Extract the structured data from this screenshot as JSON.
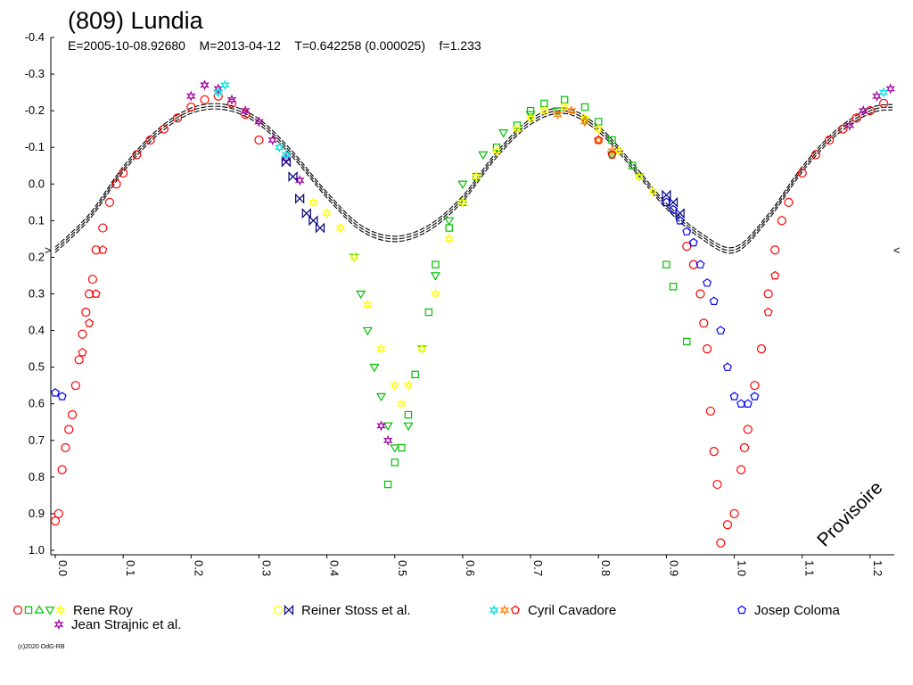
{
  "chart_data": {
    "type": "scatter",
    "title": "(809) Lundia",
    "subtitle": "E=2005-10-08.92680    M=2013-04-12    T=0.642258 (0.000025)    f=1.233",
    "stamp": "Provisoire",
    "copyright": "(c)2020 OdG-RB",
    "xlim": [
      0.0,
      1.233
    ],
    "ylim": [
      -0.4,
      1.0
    ],
    "y_inverted": true,
    "grid": false,
    "x_ticks": [
      "0.0",
      "0.1",
      "0.2",
      "0.3",
      "0.4",
      "0.5",
      "0.6",
      "0.7",
      "0.8",
      "0.9",
      "1.0",
      "1.1",
      "1.2"
    ],
    "y_ticks": [
      "-0.4",
      "-0.3",
      "-0.2",
      "-0.1",
      "0.0",
      "0.1",
      "0.2",
      "0.3",
      "0.4",
      "0.5",
      "0.6",
      "0.7",
      "0.8",
      "0.9",
      "1.0"
    ],
    "side_markers": [
      ">",
      "<"
    ],
    "model_curve": {
      "description": "fitted lightcurve",
      "points": [
        [
          0.0,
          0.18
        ],
        [
          0.05,
          0.09
        ],
        [
          0.1,
          -0.04
        ],
        [
          0.15,
          -0.14
        ],
        [
          0.2,
          -0.2
        ],
        [
          0.25,
          -0.21
        ],
        [
          0.3,
          -0.17
        ],
        [
          0.35,
          -0.08
        ],
        [
          0.4,
          0.03
        ],
        [
          0.45,
          0.12
        ],
        [
          0.5,
          0.15
        ],
        [
          0.55,
          0.12
        ],
        [
          0.6,
          0.04
        ],
        [
          0.65,
          -0.08
        ],
        [
          0.7,
          -0.17
        ],
        [
          0.75,
          -0.2
        ],
        [
          0.8,
          -0.15
        ],
        [
          0.85,
          -0.05
        ],
        [
          0.9,
          0.06
        ],
        [
          0.95,
          0.14
        ],
        [
          1.0,
          0.18
        ],
        [
          1.05,
          0.09
        ],
        [
          1.1,
          -0.04
        ],
        [
          1.15,
          -0.14
        ],
        [
          1.2,
          -0.2
        ],
        [
          1.233,
          -0.21
        ]
      ]
    },
    "series": [
      {
        "name": "Rene Roy",
        "color": "#ff0000",
        "marker": "circle",
        "points": [
          [
            0.0,
            0.92
          ],
          [
            0.005,
            0.9
          ],
          [
            0.01,
            0.78
          ],
          [
            0.015,
            0.72
          ],
          [
            0.02,
            0.67
          ],
          [
            0.025,
            0.63
          ],
          [
            0.03,
            0.55
          ],
          [
            0.035,
            0.48
          ],
          [
            0.04,
            0.41
          ],
          [
            0.045,
            0.35
          ],
          [
            0.05,
            0.3
          ],
          [
            0.055,
            0.26
          ],
          [
            0.06,
            0.18
          ],
          [
            0.07,
            0.12
          ],
          [
            0.08,
            0.05
          ],
          [
            0.09,
            0.0
          ],
          [
            0.1,
            -0.03
          ],
          [
            0.12,
            -0.08
          ],
          [
            0.14,
            -0.12
          ],
          [
            0.16,
            -0.15
          ],
          [
            0.18,
            -0.18
          ],
          [
            0.2,
            -0.21
          ],
          [
            0.22,
            -0.23
          ],
          [
            0.24,
            -0.24
          ],
          [
            0.26,
            -0.22
          ],
          [
            0.28,
            -0.19
          ],
          [
            0.3,
            -0.12
          ],
          [
            0.93,
            0.17
          ],
          [
            0.94,
            0.22
          ],
          [
            0.95,
            0.3
          ],
          [
            0.955,
            0.38
          ],
          [
            0.96,
            0.45
          ],
          [
            0.965,
            0.62
          ],
          [
            0.97,
            0.73
          ],
          [
            0.975,
            0.82
          ],
          [
            0.98,
            0.98
          ],
          [
            0.99,
            0.93
          ],
          [
            1.0,
            0.9
          ],
          [
            1.01,
            0.78
          ],
          [
            1.015,
            0.72
          ],
          [
            1.02,
            0.67
          ],
          [
            1.03,
            0.55
          ],
          [
            1.04,
            0.45
          ],
          [
            1.05,
            0.3
          ],
          [
            1.06,
            0.18
          ],
          [
            1.07,
            0.1
          ],
          [
            1.08,
            0.05
          ],
          [
            1.1,
            -0.03
          ],
          [
            1.12,
            -0.08
          ],
          [
            1.14,
            -0.12
          ],
          [
            1.16,
            -0.15
          ],
          [
            1.18,
            -0.18
          ],
          [
            1.2,
            -0.2
          ],
          [
            1.22,
            -0.22
          ]
        ]
      },
      {
        "name": "Rene Roy",
        "color": "#00c000",
        "marker": "square",
        "points": [
          [
            0.49,
            0.82
          ],
          [
            0.5,
            0.76
          ],
          [
            0.51,
            0.72
          ],
          [
            0.52,
            0.63
          ],
          [
            0.53,
            0.52
          ],
          [
            0.55,
            0.35
          ],
          [
            0.56,
            0.22
          ],
          [
            0.58,
            0.12
          ],
          [
            0.6,
            0.05
          ],
          [
            0.62,
            -0.02
          ],
          [
            0.65,
            -0.1
          ],
          [
            0.68,
            -0.16
          ],
          [
            0.7,
            -0.2
          ],
          [
            0.72,
            -0.22
          ],
          [
            0.75,
            -0.23
          ],
          [
            0.78,
            -0.21
          ],
          [
            0.8,
            -0.17
          ],
          [
            0.82,
            -0.12
          ],
          [
            0.85,
            -0.05
          ],
          [
            0.9,
            0.22
          ],
          [
            0.91,
            0.28
          ],
          [
            0.93,
            0.43
          ]
        ]
      },
      {
        "name": "Rene Roy",
        "color": "#00c000",
        "marker": "triangle-down",
        "points": [
          [
            0.44,
            0.2
          ],
          [
            0.45,
            0.3
          ],
          [
            0.46,
            0.4
          ],
          [
            0.47,
            0.5
          ],
          [
            0.48,
            0.58
          ],
          [
            0.49,
            0.66
          ],
          [
            0.5,
            0.72
          ],
          [
            0.52,
            0.66
          ],
          [
            0.54,
            0.45
          ],
          [
            0.56,
            0.25
          ],
          [
            0.58,
            0.1
          ],
          [
            0.6,
            0.0
          ],
          [
            0.63,
            -0.08
          ],
          [
            0.66,
            -0.14
          ],
          [
            0.7,
            -0.19
          ],
          [
            0.74,
            -0.2
          ],
          [
            0.78,
            -0.17
          ],
          [
            0.82,
            -0.08
          ],
          [
            0.86,
            -0.02
          ]
        ]
      },
      {
        "name": "Rene Roy",
        "color": "#ffff00",
        "marker": "star",
        "points": [
          [
            0.38,
            0.05
          ],
          [
            0.4,
            0.08
          ],
          [
            0.42,
            0.12
          ],
          [
            0.44,
            0.2
          ],
          [
            0.46,
            0.33
          ],
          [
            0.48,
            0.45
          ],
          [
            0.5,
            0.55
          ],
          [
            0.51,
            0.6
          ],
          [
            0.52,
            0.55
          ],
          [
            0.54,
            0.45
          ],
          [
            0.56,
            0.3
          ],
          [
            0.58,
            0.15
          ],
          [
            0.6,
            0.05
          ],
          [
            0.62,
            -0.02
          ],
          [
            0.65,
            -0.09
          ],
          [
            0.68,
            -0.15
          ],
          [
            0.7,
            -0.18
          ],
          [
            0.72,
            -0.2
          ],
          [
            0.75,
            -0.21
          ],
          [
            0.78,
            -0.18
          ],
          [
            0.8,
            -0.15
          ],
          [
            0.83,
            -0.09
          ],
          [
            0.86,
            -0.02
          ],
          [
            0.88,
            0.02
          ]
        ]
      },
      {
        "name": "Jean Strajnic et al.",
        "color": "#a000a0",
        "marker": "star",
        "points": [
          [
            0.2,
            -0.24
          ],
          [
            0.22,
            -0.27
          ],
          [
            0.24,
            -0.26
          ],
          [
            0.26,
            -0.23
          ],
          [
            0.28,
            -0.2
          ],
          [
            0.3,
            -0.17
          ],
          [
            0.32,
            -0.12
          ],
          [
            0.34,
            -0.07
          ],
          [
            0.36,
            -0.01
          ],
          [
            0.48,
            0.66
          ],
          [
            0.49,
            0.7
          ],
          [
            1.17,
            -0.16
          ],
          [
            1.19,
            -0.2
          ],
          [
            1.21,
            -0.24
          ],
          [
            1.23,
            -0.26
          ]
        ]
      },
      {
        "name": "Reiner Stoss et al.",
        "color": "#000080",
        "marker": "bowtie",
        "points": [
          [
            0.34,
            -0.06
          ],
          [
            0.35,
            -0.02
          ],
          [
            0.36,
            0.04
          ],
          [
            0.37,
            0.08
          ],
          [
            0.38,
            0.1
          ],
          [
            0.39,
            0.12
          ],
          [
            0.9,
            0.03
          ],
          [
            0.91,
            0.05
          ],
          [
            0.92,
            0.08
          ]
        ]
      },
      {
        "name": "Cyril Cavadore",
        "color": "#00e0e0",
        "marker": "star",
        "points": [
          [
            0.24,
            -0.25
          ],
          [
            0.25,
            -0.27
          ],
          [
            0.33,
            -0.1
          ],
          [
            0.34,
            -0.08
          ],
          [
            1.22,
            -0.25
          ]
        ]
      },
      {
        "name": "Cyril Cavadore",
        "color": "#ff8000",
        "marker": "star",
        "points": [
          [
            0.74,
            -0.19
          ],
          [
            0.76,
            -0.2
          ],
          [
            0.78,
            -0.17
          ],
          [
            0.8,
            -0.12
          ],
          [
            0.82,
            -0.09
          ]
        ]
      },
      {
        "name": "Cyril Cavadore",
        "color": "#ff0000",
        "marker": "pentagon",
        "points": [
          [
            0.04,
            0.46
          ],
          [
            0.05,
            0.38
          ],
          [
            0.06,
            0.3
          ],
          [
            0.07,
            0.18
          ],
          [
            0.8,
            -0.12
          ],
          [
            0.82,
            -0.08
          ],
          [
            1.05,
            0.35
          ],
          [
            1.06,
            0.25
          ]
        ]
      },
      {
        "name": "Josep Coloma",
        "color": "#0000ff",
        "marker": "pentagon",
        "points": [
          [
            0.0,
            0.57
          ],
          [
            0.01,
            0.58
          ],
          [
            0.9,
            0.05
          ],
          [
            0.91,
            0.07
          ],
          [
            0.92,
            0.1
          ],
          [
            0.93,
            0.13
          ],
          [
            0.94,
            0.16
          ],
          [
            0.95,
            0.22
          ],
          [
            0.96,
            0.27
          ],
          [
            0.97,
            0.32
          ],
          [
            0.98,
            0.4
          ],
          [
            0.99,
            0.5
          ],
          [
            1.0,
            0.58
          ],
          [
            1.01,
            0.6
          ],
          [
            1.02,
            0.6
          ],
          [
            1.03,
            0.58
          ]
        ]
      }
    ],
    "legend": [
      {
        "label": "Rene Roy",
        "markers": [
          [
            "circle",
            "#ff0000"
          ],
          [
            "square",
            "#00c000"
          ],
          [
            "triangle-up",
            "#00c000"
          ],
          [
            "triangle-down",
            "#00c000"
          ],
          [
            "star",
            "#ffff00"
          ]
        ]
      },
      {
        "label": "Reiner Stoss et al.",
        "markers": [
          [
            "circle",
            "#ffff00"
          ],
          [
            "bowtie",
            "#000080"
          ]
        ]
      },
      {
        "label": "Cyril Cavadore",
        "markers": [
          [
            "star",
            "#00e0e0"
          ],
          [
            "star",
            "#ff8000"
          ],
          [
            "pentagon",
            "#ff0000"
          ]
        ]
      },
      {
        "label": "Josep Coloma",
        "markers": [
          [
            "pentagon",
            "#0000ff"
          ]
        ]
      },
      {
        "label": "Jean Strajnic et al.",
        "markers": [
          [
            "star",
            "#a000a0"
          ]
        ]
      }
    ]
  }
}
